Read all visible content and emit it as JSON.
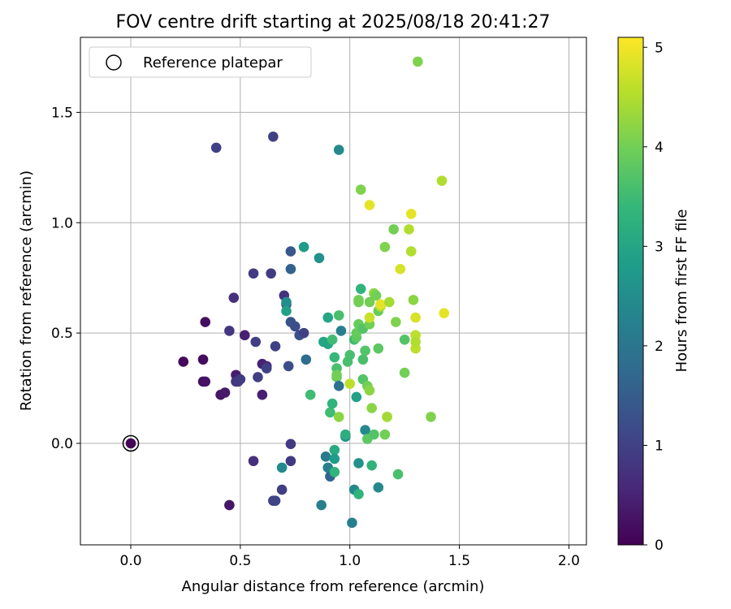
{
  "chart_data": {
    "type": "scatter",
    "title": "FOV centre drift starting at 2025/08/18 20:41:27",
    "xlabel": "Angular distance from reference (arcmin)",
    "ylabel": "Rotation from reference (arcmin)",
    "xlim": [
      -0.23,
      2.08
    ],
    "ylim": [
      -0.46,
      1.84
    ],
    "xticks": [
      0.0,
      0.5,
      1.0,
      1.5,
      2.0
    ],
    "xtick_labels": [
      "0.0",
      "0.5",
      "1.0",
      "1.5",
      "2.0"
    ],
    "yticks": [
      0.0,
      0.5,
      1.0,
      1.5
    ],
    "ytick_labels": [
      "0.0",
      "0.5",
      "1.0",
      "1.5"
    ],
    "grid": true,
    "legend": {
      "placement": "top-left",
      "entries": [
        "Reference platepar"
      ]
    },
    "reference_point": {
      "x": 0.0,
      "y": 0.0,
      "hours": 0.0
    },
    "colorbar": {
      "label": "Hours from first FF file",
      "colormap": "viridis",
      "range": [
        0,
        5.1
      ],
      "ticks": [
        0,
        1,
        2,
        3,
        4,
        5
      ],
      "tick_labels": [
        "0",
        "1",
        "2",
        "3",
        "4",
        "5"
      ],
      "colors": [
        "#440154",
        "#482878",
        "#3e4989",
        "#31688e",
        "#26828e",
        "#1f9e89",
        "#35b779",
        "#6ece58",
        "#b5de2b",
        "#fde725"
      ]
    },
    "points": [
      {
        "x": 0.0,
        "y": 0.0,
        "h": 0.05
      },
      {
        "x": 0.24,
        "y": 0.37,
        "h": 0.1
      },
      {
        "x": 0.33,
        "y": 0.38,
        "h": 0.15
      },
      {
        "x": 0.34,
        "y": 0.55,
        "h": 0.2
      },
      {
        "x": 0.33,
        "y": 0.28,
        "h": 0.2
      },
      {
        "x": 0.34,
        "y": 0.28,
        "h": 0.25
      },
      {
        "x": 0.41,
        "y": 0.22,
        "h": 0.3
      },
      {
        "x": 0.43,
        "y": 0.23,
        "h": 0.35
      },
      {
        "x": 0.45,
        "y": -0.28,
        "h": 0.3
      },
      {
        "x": 0.48,
        "y": 0.31,
        "h": 0.4
      },
      {
        "x": 0.52,
        "y": 0.49,
        "h": 0.45
      },
      {
        "x": 0.6,
        "y": 0.36,
        "h": 0.5
      },
      {
        "x": 0.6,
        "y": 0.22,
        "h": 0.45
      },
      {
        "x": 0.62,
        "y": 0.35,
        "h": 0.55
      },
      {
        "x": 0.39,
        "y": 1.34,
        "h": 1.0
      },
      {
        "x": 0.65,
        "y": 1.39,
        "h": 1.0
      },
      {
        "x": 0.45,
        "y": 0.51,
        "h": 0.8
      },
      {
        "x": 0.47,
        "y": 0.66,
        "h": 0.7
      },
      {
        "x": 0.48,
        "y": 0.28,
        "h": 0.8
      },
      {
        "x": 0.49,
        "y": 0.28,
        "h": 0.85
      },
      {
        "x": 0.5,
        "y": 0.29,
        "h": 0.9
      },
      {
        "x": 0.56,
        "y": 0.77,
        "h": 0.9
      },
      {
        "x": 0.57,
        "y": 0.46,
        "h": 0.95
      },
      {
        "x": 0.58,
        "y": 0.3,
        "h": 0.95
      },
      {
        "x": 0.56,
        "y": -0.08,
        "h": 0.7
      },
      {
        "x": 0.62,
        "y": 0.34,
        "h": 1.0
      },
      {
        "x": 0.64,
        "y": 0.77,
        "h": 0.9
      },
      {
        "x": 0.66,
        "y": 0.44,
        "h": 1.0
      },
      {
        "x": 0.65,
        "y": -0.26,
        "h": 1.0
      },
      {
        "x": 0.66,
        "y": -0.26,
        "h": 1.05
      },
      {
        "x": 0.69,
        "y": -0.21,
        "h": 0.95
      },
      {
        "x": 0.7,
        "y": 0.67,
        "h": 0.75
      },
      {
        "x": 0.71,
        "y": 0.63,
        "h": 1.1
      },
      {
        "x": 0.72,
        "y": 0.35,
        "h": 1.2
      },
      {
        "x": 0.73,
        "y": 0.55,
        "h": 1.3
      },
      {
        "x": 0.73,
        "y": -0.08,
        "h": 0.85
      },
      {
        "x": 0.73,
        "y": -0.003,
        "h": 0.9
      },
      {
        "x": 0.73,
        "y": 0.87,
        "h": 1.4
      },
      {
        "x": 0.73,
        "y": 0.79,
        "h": 1.6
      },
      {
        "x": 0.75,
        "y": 0.53,
        "h": 1.2
      },
      {
        "x": 0.77,
        "y": 0.49,
        "h": 1.3
      },
      {
        "x": 0.79,
        "y": 0.5,
        "h": 1.0
      },
      {
        "x": 0.8,
        "y": 0.38,
        "h": 1.8
      },
      {
        "x": 0.69,
        "y": -0.11,
        "h": 2.4
      },
      {
        "x": 0.71,
        "y": 0.64,
        "h": 2.5
      },
      {
        "x": 0.71,
        "y": 0.6,
        "h": 2.9
      },
      {
        "x": 0.79,
        "y": 0.89,
        "h": 2.8
      },
      {
        "x": 0.86,
        "y": 0.84,
        "h": 2.6
      },
      {
        "x": 0.82,
        "y": 0.22,
        "h": 3.5
      },
      {
        "x": 0.87,
        "y": -0.28,
        "h": 2.2
      },
      {
        "x": 0.89,
        "y": -0.06,
        "h": 2.1
      },
      {
        "x": 0.9,
        "y": -0.11,
        "h": 2.2
      },
      {
        "x": 0.91,
        "y": -0.15,
        "h": 1.6
      },
      {
        "x": 0.88,
        "y": 0.46,
        "h": 3.0
      },
      {
        "x": 0.9,
        "y": 0.45,
        "h": 3.0
      },
      {
        "x": 0.9,
        "y": 0.57,
        "h": 3.0
      },
      {
        "x": 0.91,
        "y": 0.14,
        "h": 3.5
      },
      {
        "x": 0.92,
        "y": 0.18,
        "h": 3.3
      },
      {
        "x": 0.92,
        "y": 0.47,
        "h": 3.5
      },
      {
        "x": 0.93,
        "y": 0.39,
        "h": 3.4
      },
      {
        "x": 0.93,
        "y": -0.03,
        "h": 3.1
      },
      {
        "x": 0.93,
        "y": -0.07,
        "h": 2.8
      },
      {
        "x": 0.93,
        "y": -0.13,
        "h": 3.3
      },
      {
        "x": 0.94,
        "y": 0.34,
        "h": 3.6
      },
      {
        "x": 0.94,
        "y": 0.3,
        "h": 3.9
      },
      {
        "x": 0.94,
        "y": 0.31,
        "h": 4.0
      },
      {
        "x": 0.95,
        "y": 0.58,
        "h": 3.6
      },
      {
        "x": 0.95,
        "y": 0.12,
        "h": 4.2
      },
      {
        "x": 0.95,
        "y": 0.26,
        "h": 1.9
      },
      {
        "x": 0.95,
        "y": 1.33,
        "h": 2.4
      },
      {
        "x": 0.96,
        "y": 0.51,
        "h": 2.2
      },
      {
        "x": 0.98,
        "y": 0.03,
        "h": 2.6
      },
      {
        "x": 0.98,
        "y": 0.04,
        "h": 3.2
      },
      {
        "x": 0.99,
        "y": 0.37,
        "h": 3.6
      },
      {
        "x": 1.0,
        "y": 0.4,
        "h": 3.6
      },
      {
        "x": 1.0,
        "y": 0.27,
        "h": 4.6
      },
      {
        "x": 1.01,
        "y": -0.36,
        "h": 2.2
      },
      {
        "x": 1.02,
        "y": -0.21,
        "h": 2.4
      },
      {
        "x": 1.02,
        "y": 0.47,
        "h": 3.5
      },
      {
        "x": 1.03,
        "y": 0.48,
        "h": 3.8
      },
      {
        "x": 1.03,
        "y": 0.5,
        "h": 3.9
      },
      {
        "x": 1.03,
        "y": 0.21,
        "h": 2.9
      },
      {
        "x": 1.04,
        "y": -0.09,
        "h": 2.6
      },
      {
        "x": 1.04,
        "y": -0.23,
        "h": 3.3
      },
      {
        "x": 1.04,
        "y": 0.65,
        "h": 4.0
      },
      {
        "x": 1.04,
        "y": 0.64,
        "h": 4.0
      },
      {
        "x": 1.04,
        "y": 0.54,
        "h": 3.9
      },
      {
        "x": 1.05,
        "y": 0.7,
        "h": 3.3
      },
      {
        "x": 1.05,
        "y": 1.15,
        "h": 4.1
      },
      {
        "x": 1.06,
        "y": 0.29,
        "h": 3.7
      },
      {
        "x": 1.06,
        "y": 0.38,
        "h": 3.6
      },
      {
        "x": 1.06,
        "y": 0.52,
        "h": 3.7
      },
      {
        "x": 1.07,
        "y": 0.42,
        "h": 3.7
      },
      {
        "x": 1.07,
        "y": 0.06,
        "h": 2.4
      },
      {
        "x": 1.08,
        "y": 0.26,
        "h": 4.0
      },
      {
        "x": 1.08,
        "y": 0.02,
        "h": 3.8
      },
      {
        "x": 1.09,
        "y": 0.24,
        "h": 4.2
      },
      {
        "x": 1.09,
        "y": 0.54,
        "h": 4.0
      },
      {
        "x": 1.09,
        "y": 0.64,
        "h": 4.0
      },
      {
        "x": 1.09,
        "y": 0.57,
        "h": 4.7
      },
      {
        "x": 1.09,
        "y": 1.08,
        "h": 4.9
      },
      {
        "x": 1.1,
        "y": 0.16,
        "h": 4.2
      },
      {
        "x": 1.1,
        "y": -0.1,
        "h": 3.3
      },
      {
        "x": 1.11,
        "y": 0.04,
        "h": 3.7
      },
      {
        "x": 1.11,
        "y": 0.68,
        "h": 4.2
      },
      {
        "x": 1.12,
        "y": 0.67,
        "h": 4.0
      },
      {
        "x": 1.13,
        "y": -0.2,
        "h": 2.4
      },
      {
        "x": 1.13,
        "y": 0.43,
        "h": 3.8
      },
      {
        "x": 1.13,
        "y": 0.6,
        "h": 3.9
      },
      {
        "x": 1.14,
        "y": 0.62,
        "h": 4.5
      },
      {
        "x": 1.14,
        "y": 0.63,
        "h": 4.9
      },
      {
        "x": 1.16,
        "y": 0.89,
        "h": 4.1
      },
      {
        "x": 1.16,
        "y": 0.04,
        "h": 4.0
      },
      {
        "x": 1.17,
        "y": 0.12,
        "h": 4.3
      },
      {
        "x": 1.17,
        "y": 0.12,
        "h": 4.4
      },
      {
        "x": 1.18,
        "y": 0.64,
        "h": 4.4
      },
      {
        "x": 1.2,
        "y": 0.97,
        "h": 4.0
      },
      {
        "x": 1.21,
        "y": 0.55,
        "h": 4.1
      },
      {
        "x": 1.22,
        "y": -0.14,
        "h": 3.6
      },
      {
        "x": 1.23,
        "y": 0.79,
        "h": 4.8
      },
      {
        "x": 1.25,
        "y": 0.47,
        "h": 3.7
      },
      {
        "x": 1.25,
        "y": 0.32,
        "h": 4.0
      },
      {
        "x": 1.27,
        "y": 0.97,
        "h": 4.5
      },
      {
        "x": 1.28,
        "y": 1.04,
        "h": 4.9
      },
      {
        "x": 1.28,
        "y": 0.87,
        "h": 4.5
      },
      {
        "x": 1.29,
        "y": 0.65,
        "h": 4.2
      },
      {
        "x": 1.3,
        "y": 0.57,
        "h": 4.8
      },
      {
        "x": 1.3,
        "y": 0.49,
        "h": 4.6
      },
      {
        "x": 1.3,
        "y": 0.43,
        "h": 4.6
      },
      {
        "x": 1.3,
        "y": 0.46,
        "h": 4.5
      },
      {
        "x": 1.31,
        "y": 1.73,
        "h": 4.1
      },
      {
        "x": 1.37,
        "y": 0.12,
        "h": 4.1
      },
      {
        "x": 1.42,
        "y": 1.19,
        "h": 4.5
      },
      {
        "x": 1.43,
        "y": 0.59,
        "h": 4.9
      }
    ]
  }
}
